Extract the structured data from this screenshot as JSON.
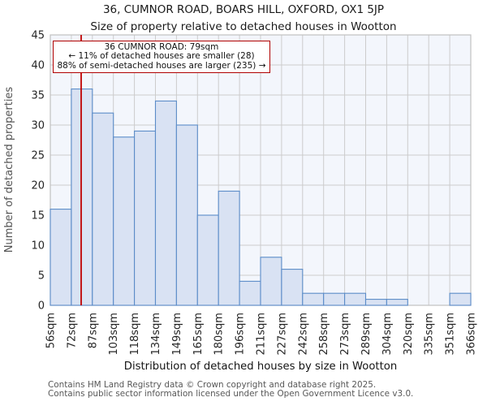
{
  "figure": {
    "title": "36, CUMNOR ROAD, BOARS HILL, OXFORD, OX1 5JP",
    "subtitle": "Size of property relative to detached houses in Wootton"
  },
  "annotation": {
    "line1": "36 CUMNOR ROAD: 79sqm",
    "line2": "← 11% of detached houses are smaller (28)",
    "line3": "88% of semi-detached houses are larger (235) →"
  },
  "axes": {
    "ylabel": "Number of detached properties",
    "xlabel": "Distribution of detached houses by size in Wootton"
  },
  "footer": {
    "line1": "Contains HM Land Registry data © Crown copyright and database right 2025.",
    "line2": "Contains public sector information licensed under the Open Government Licence v3.0."
  },
  "colors": {
    "bar_fill": "#d9e2f3",
    "bar_stroke": "#5b8cc8",
    "plot_bg": "#f3f6fc",
    "grid": "#cccccc",
    "border": "#c0c0c0",
    "marker_line": "#c00000",
    "annotation_border": "#b00000",
    "tick_text": "#262626",
    "muted_text": "#575757"
  },
  "chart_data": {
    "type": "bar",
    "title": "36, CUMNOR ROAD, BOARS HILL, OXFORD, OX1 5JP",
    "subtitle": "Size of property relative to detached houses in Wootton",
    "xlabel": "Distribution of detached houses by size in Wootton",
    "ylabel": "Number of detached properties",
    "categories": [
      "56sqm",
      "72sqm",
      "87sqm",
      "103sqm",
      "118sqm",
      "134sqm",
      "149sqm",
      "165sqm",
      "180sqm",
      "196sqm",
      "211sqm",
      "227sqm",
      "242sqm",
      "258sqm",
      "273sqm",
      "289sqm",
      "304sqm",
      "320sqm",
      "335sqm",
      "351sqm",
      "366sqm"
    ],
    "values": [
      16,
      36,
      32,
      28,
      29,
      34,
      30,
      15,
      19,
      4,
      8,
      6,
      2,
      2,
      2,
      1,
      1,
      0,
      0,
      2
    ],
    "yticks": [
      0,
      5,
      10,
      15,
      20,
      25,
      30,
      35,
      40,
      45
    ],
    "ylim": [
      0,
      45
    ],
    "grid": true,
    "legend": false,
    "marker": {
      "label": "36 CUMNOR ROAD",
      "value_sqm": 79
    }
  }
}
